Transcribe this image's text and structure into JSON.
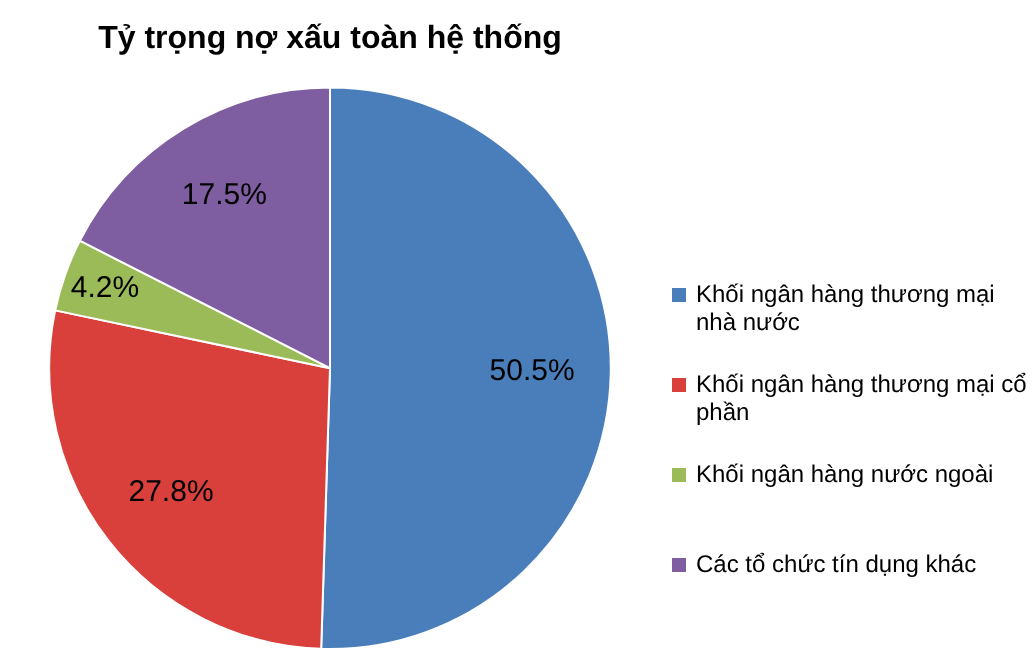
{
  "chart_data": {
    "type": "pie",
    "title": "Tỷ trọng nợ xấu toàn hệ thống",
    "categories": [
      "Khối ngân hàng thương mại nhà nước",
      "Khối ngân hàng thương mại cổ phần",
      "Khối ngân hàng nước ngoài",
      "Các tổ chức tín dụng khác"
    ],
    "values": [
      50.5,
      27.8,
      4.2,
      17.5
    ],
    "colors": [
      "#4a7ebb",
      "#d9403b",
      "#9bbb59",
      "#7e5ea1"
    ],
    "value_labels": [
      "50.5%",
      "27.8%",
      "4.2%",
      "17.5%"
    ],
    "legend": "right"
  }
}
